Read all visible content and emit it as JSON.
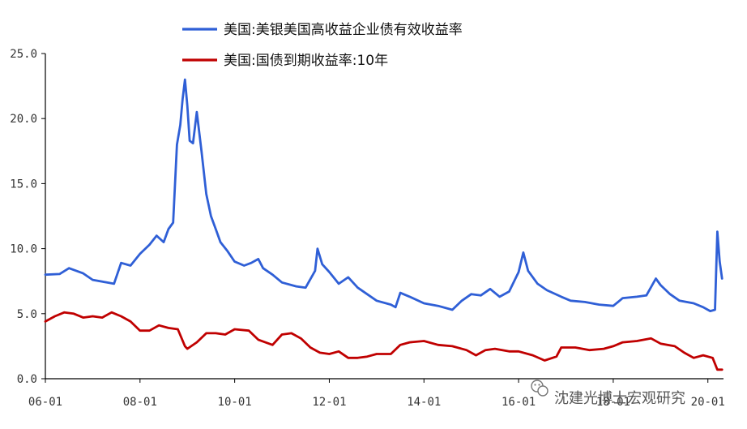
{
  "chart_data": {
    "type": "line",
    "title": "",
    "xlabel": "",
    "ylabel": "",
    "ylim": [
      0,
      25
    ],
    "yticks": [
      "0.0",
      "5.0",
      "10.0",
      "15.0",
      "20.0",
      "25.0"
    ],
    "xticks": [
      "06-01",
      "08-01",
      "10-01",
      "12-01",
      "14-01",
      "16-01",
      "18-01",
      "20-01"
    ],
    "xlim": [
      2006.0,
      2020.33
    ],
    "grid": false,
    "legend_position": "top-center",
    "series": [
      {
        "name": "美国:美银美国高收益企业债有效收益率",
        "color": "#2f5fd6",
        "points": [
          [
            2006.0,
            8.0
          ],
          [
            2006.3,
            8.05
          ],
          [
            2006.5,
            8.5
          ],
          [
            2006.8,
            8.1
          ],
          [
            2007.0,
            7.6
          ],
          [
            2007.3,
            7.4
          ],
          [
            2007.45,
            7.3
          ],
          [
            2007.6,
            8.9
          ],
          [
            2007.8,
            8.7
          ],
          [
            2008.0,
            9.6
          ],
          [
            2008.2,
            10.3
          ],
          [
            2008.35,
            11.0
          ],
          [
            2008.5,
            10.5
          ],
          [
            2008.6,
            11.5
          ],
          [
            2008.7,
            12.0
          ],
          [
            2008.78,
            18.0
          ],
          [
            2008.85,
            19.5
          ],
          [
            2008.9,
            21.5
          ],
          [
            2008.95,
            23.0
          ],
          [
            2009.0,
            21.0
          ],
          [
            2009.05,
            18.3
          ],
          [
            2009.12,
            18.1
          ],
          [
            2009.2,
            20.5
          ],
          [
            2009.3,
            17.5
          ],
          [
            2009.4,
            14.2
          ],
          [
            2009.5,
            12.5
          ],
          [
            2009.6,
            11.5
          ],
          [
            2009.7,
            10.5
          ],
          [
            2009.85,
            9.8
          ],
          [
            2010.0,
            9.0
          ],
          [
            2010.2,
            8.7
          ],
          [
            2010.35,
            8.9
          ],
          [
            2010.5,
            9.2
          ],
          [
            2010.6,
            8.5
          ],
          [
            2010.8,
            8.0
          ],
          [
            2011.0,
            7.4
          ],
          [
            2011.3,
            7.1
          ],
          [
            2011.5,
            7.0
          ],
          [
            2011.7,
            8.3
          ],
          [
            2011.75,
            10.0
          ],
          [
            2011.85,
            8.8
          ],
          [
            2012.0,
            8.2
          ],
          [
            2012.2,
            7.3
          ],
          [
            2012.4,
            7.8
          ],
          [
            2012.6,
            7.0
          ],
          [
            2013.0,
            6.0
          ],
          [
            2013.3,
            5.7
          ],
          [
            2013.4,
            5.5
          ],
          [
            2013.5,
            6.6
          ],
          [
            2013.7,
            6.3
          ],
          [
            2014.0,
            5.8
          ],
          [
            2014.3,
            5.6
          ],
          [
            2014.6,
            5.3
          ],
          [
            2014.8,
            6.0
          ],
          [
            2015.0,
            6.5
          ],
          [
            2015.2,
            6.4
          ],
          [
            2015.4,
            6.9
          ],
          [
            2015.6,
            6.3
          ],
          [
            2015.8,
            6.7
          ],
          [
            2016.0,
            8.2
          ],
          [
            2016.1,
            9.7
          ],
          [
            2016.2,
            8.3
          ],
          [
            2016.4,
            7.3
          ],
          [
            2016.6,
            6.8
          ],
          [
            2016.9,
            6.3
          ],
          [
            2017.1,
            6.0
          ],
          [
            2017.4,
            5.9
          ],
          [
            2017.7,
            5.7
          ],
          [
            2018.0,
            5.6
          ],
          [
            2018.2,
            6.2
          ],
          [
            2018.5,
            6.3
          ],
          [
            2018.7,
            6.4
          ],
          [
            2018.9,
            7.7
          ],
          [
            2019.0,
            7.2
          ],
          [
            2019.2,
            6.5
          ],
          [
            2019.4,
            6.0
          ],
          [
            2019.7,
            5.8
          ],
          [
            2019.9,
            5.5
          ],
          [
            2020.05,
            5.2
          ],
          [
            2020.15,
            5.3
          ],
          [
            2020.2,
            11.3
          ],
          [
            2020.25,
            9.0
          ],
          [
            2020.3,
            7.7
          ]
        ]
      },
      {
        "name": "美国:国债到期收益率:10年",
        "color": "#c00000",
        "points": [
          [
            2006.0,
            4.4
          ],
          [
            2006.2,
            4.8
          ],
          [
            2006.4,
            5.1
          ],
          [
            2006.6,
            5.0
          ],
          [
            2006.8,
            4.7
          ],
          [
            2007.0,
            4.8
          ],
          [
            2007.2,
            4.7
          ],
          [
            2007.4,
            5.1
          ],
          [
            2007.6,
            4.8
          ],
          [
            2007.8,
            4.4
          ],
          [
            2008.0,
            3.7
          ],
          [
            2008.2,
            3.7
          ],
          [
            2008.4,
            4.1
          ],
          [
            2008.6,
            3.9
          ],
          [
            2008.8,
            3.8
          ],
          [
            2008.95,
            2.5
          ],
          [
            2009.0,
            2.3
          ],
          [
            2009.2,
            2.8
          ],
          [
            2009.4,
            3.5
          ],
          [
            2009.6,
            3.5
          ],
          [
            2009.8,
            3.4
          ],
          [
            2010.0,
            3.8
          ],
          [
            2010.3,
            3.7
          ],
          [
            2010.5,
            3.0
          ],
          [
            2010.8,
            2.6
          ],
          [
            2011.0,
            3.4
          ],
          [
            2011.2,
            3.5
          ],
          [
            2011.4,
            3.1
          ],
          [
            2011.6,
            2.4
          ],
          [
            2011.8,
            2.0
          ],
          [
            2012.0,
            1.9
          ],
          [
            2012.2,
            2.1
          ],
          [
            2012.4,
            1.6
          ],
          [
            2012.6,
            1.6
          ],
          [
            2012.8,
            1.7
          ],
          [
            2013.0,
            1.9
          ],
          [
            2013.3,
            1.9
          ],
          [
            2013.5,
            2.6
          ],
          [
            2013.7,
            2.8
          ],
          [
            2014.0,
            2.9
          ],
          [
            2014.3,
            2.6
          ],
          [
            2014.6,
            2.5
          ],
          [
            2014.9,
            2.2
          ],
          [
            2015.1,
            1.8
          ],
          [
            2015.3,
            2.2
          ],
          [
            2015.5,
            2.3
          ],
          [
            2015.8,
            2.1
          ],
          [
            2016.0,
            2.1
          ],
          [
            2016.3,
            1.8
          ],
          [
            2016.55,
            1.4
          ],
          [
            2016.8,
            1.7
          ],
          [
            2016.9,
            2.4
          ],
          [
            2017.2,
            2.4
          ],
          [
            2017.5,
            2.2
          ],
          [
            2017.8,
            2.3
          ],
          [
            2018.0,
            2.5
          ],
          [
            2018.2,
            2.8
          ],
          [
            2018.5,
            2.9
          ],
          [
            2018.8,
            3.1
          ],
          [
            2019.0,
            2.7
          ],
          [
            2019.3,
            2.5
          ],
          [
            2019.5,
            2.0
          ],
          [
            2019.7,
            1.6
          ],
          [
            2019.9,
            1.8
          ],
          [
            2020.1,
            1.6
          ],
          [
            2020.2,
            0.7
          ],
          [
            2020.3,
            0.7
          ]
        ]
      }
    ]
  },
  "watermark": {
    "icon": "wechat-icon",
    "text": "沈建光博士宏观研究"
  }
}
